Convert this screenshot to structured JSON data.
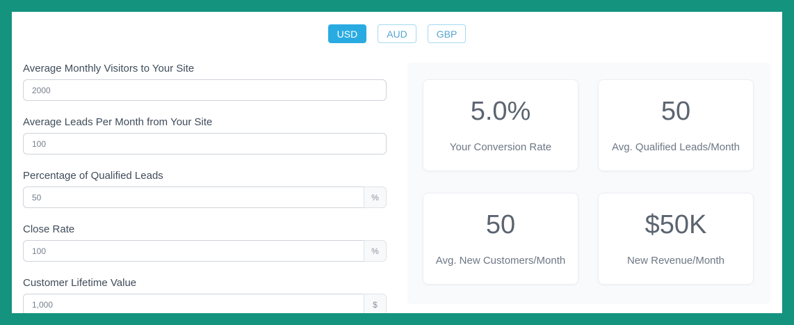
{
  "currency": {
    "options": [
      {
        "label": "USD",
        "active": true
      },
      {
        "label": "AUD",
        "active": false
      },
      {
        "label": "GBP",
        "active": false
      }
    ]
  },
  "form": {
    "fields": [
      {
        "label": "Average Monthly Visitors to Your Site",
        "value": "2000",
        "suffix": ""
      },
      {
        "label": "Average Leads Per Month from Your Site",
        "value": "100",
        "suffix": ""
      },
      {
        "label": "Percentage of Qualified Leads",
        "value": "50",
        "suffix": "%"
      },
      {
        "label": "Close Rate",
        "value": "100",
        "suffix": "%"
      },
      {
        "label": "Customer Lifetime Value",
        "value": "1,000",
        "suffix": "$"
      }
    ]
  },
  "results": {
    "cards": [
      {
        "value": "5.0%",
        "label": "Your Conversion Rate"
      },
      {
        "value": "50",
        "label": "Avg. Qualified Leads/Month"
      },
      {
        "value": "50",
        "label": "Avg. New Customers/Month"
      },
      {
        "value": "$50K",
        "label": "New Revenue/Month"
      }
    ]
  },
  "colors": {
    "frame": "#14937f",
    "accent_blue": "#29abe2",
    "panel_bg": "#f8fafb",
    "label_text": "#3f4c5a",
    "stat_text": "#5b6470"
  }
}
